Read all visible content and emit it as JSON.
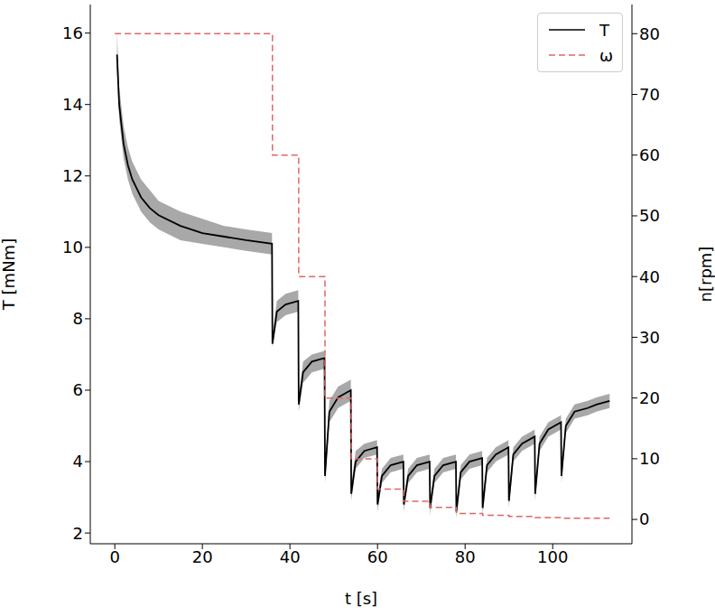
{
  "chart_data": {
    "type": "line",
    "xlabel": "t [s]",
    "ylabel": "T [mNm]",
    "y2label": "n[rpm]",
    "xlim": [
      -5.6,
      118.1
    ],
    "xticks": [
      0,
      20,
      40,
      60,
      80,
      100
    ],
    "ylim": [
      1.7,
      16.8
    ],
    "yticks": [
      2,
      4,
      6,
      8,
      10,
      12,
      14,
      16
    ],
    "y2lim": [
      -4,
      84.8
    ],
    "y2ticks": [
      0,
      10,
      20,
      30,
      40,
      50,
      60,
      70,
      80
    ],
    "legend": "upper right",
    "series": [
      {
        "name": "T",
        "color": "#000000",
        "line_style": "solid",
        "x": [
          0.5,
          1,
          2,
          3,
          4,
          6,
          8,
          10,
          15,
          20,
          25,
          30,
          35.9,
          36,
          37,
          39,
          41.9,
          42,
          43,
          45,
          47.9,
          48,
          49,
          51,
          53.9,
          54,
          55,
          57,
          59.9,
          60,
          61,
          63,
          65.9,
          66,
          67,
          69,
          71.9,
          72,
          73,
          75,
          77.9,
          78,
          79,
          81,
          83.9,
          84,
          85,
          87,
          89.9,
          90,
          91,
          93,
          95.9,
          96,
          97,
          99,
          101.9,
          102,
          103,
          105,
          108,
          110,
          113
        ],
        "values": [
          15.4,
          14.0,
          12.9,
          12.3,
          11.9,
          11.4,
          11.1,
          10.9,
          10.6,
          10.4,
          10.3,
          10.2,
          10.1,
          7.3,
          8.2,
          8.4,
          8.5,
          5.6,
          6.5,
          6.8,
          6.9,
          3.6,
          5.4,
          5.8,
          6.0,
          3.1,
          4.0,
          4.3,
          4.4,
          2.8,
          3.6,
          3.9,
          4.0,
          2.8,
          3.6,
          3.9,
          4.0,
          2.7,
          3.6,
          3.9,
          4.0,
          2.6,
          3.7,
          4.0,
          4.1,
          2.7,
          3.9,
          4.2,
          4.4,
          2.9,
          4.2,
          4.5,
          4.7,
          3.1,
          4.5,
          4.9,
          5.1,
          3.6,
          5.0,
          5.4,
          5.5,
          5.6,
          5.7
        ],
        "lower": [
          15.0,
          13.6,
          12.5,
          11.9,
          11.5,
          11.0,
          10.7,
          10.5,
          10.2,
          10.1,
          10.0,
          9.9,
          9.8,
          7.2,
          7.9,
          8.1,
          8.2,
          5.4,
          6.2,
          6.5,
          6.6,
          3.4,
          5.1,
          5.5,
          5.7,
          2.9,
          3.8,
          4.1,
          4.2,
          2.6,
          3.4,
          3.7,
          3.8,
          2.6,
          3.4,
          3.7,
          3.8,
          2.5,
          3.4,
          3.7,
          3.8,
          2.4,
          3.5,
          3.8,
          3.9,
          2.5,
          3.7,
          4.0,
          4.2,
          2.7,
          4.0,
          4.3,
          4.5,
          2.9,
          4.3,
          4.7,
          4.9,
          3.4,
          4.8,
          5.2,
          5.3,
          5.4,
          5.5
        ],
        "upper": [
          16.0,
          14.5,
          13.4,
          12.8,
          12.4,
          11.9,
          11.6,
          11.3,
          11.0,
          10.8,
          10.6,
          10.5,
          10.4,
          7.5,
          8.5,
          8.7,
          8.8,
          5.8,
          6.8,
          7.0,
          7.1,
          3.8,
          5.7,
          6.1,
          6.3,
          3.3,
          4.3,
          4.5,
          4.6,
          3.0,
          3.8,
          4.1,
          4.2,
          3.0,
          3.8,
          4.1,
          4.2,
          2.9,
          3.8,
          4.1,
          4.2,
          2.8,
          3.9,
          4.2,
          4.3,
          2.9,
          4.1,
          4.4,
          4.6,
          3.1,
          4.4,
          4.7,
          4.9,
          3.3,
          4.7,
          5.1,
          5.3,
          3.8,
          5.2,
          5.6,
          5.7,
          5.8,
          5.9
        ]
      },
      {
        "name": "ω",
        "color": "#e06666",
        "line_style": "dashed",
        "type": "step",
        "axis": "y2",
        "x": [
          0,
          36,
          42,
          48,
          54,
          60,
          66,
          72,
          78,
          84,
          90,
          96,
          102,
          113
        ],
        "values": [
          80,
          60,
          40,
          20,
          10,
          5,
          3,
          2,
          1,
          0.7,
          0.5,
          0.3,
          0.2,
          0.2
        ]
      }
    ]
  }
}
